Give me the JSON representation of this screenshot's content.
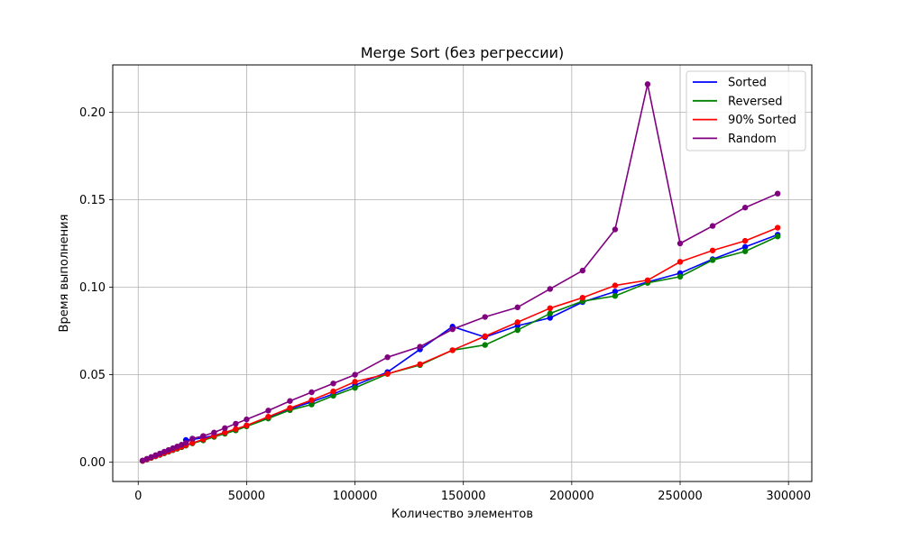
{
  "chart_data": {
    "type": "line",
    "title": "Merge Sort (без регрессии)",
    "xlabel": "Количество элементов",
    "ylabel": "Время выполнения",
    "xlim": [
      -11750,
      310750
    ],
    "ylim": [
      -0.011,
      0.227
    ],
    "xticks": [
      0,
      50000,
      100000,
      150000,
      200000,
      250000,
      300000
    ],
    "xtick_labels": [
      "0",
      "50000",
      "100000",
      "150000",
      "200000",
      "250000",
      "300000"
    ],
    "yticks": [
      0.0,
      0.05,
      0.1,
      0.15,
      0.2
    ],
    "ytick_labels": [
      "0.00",
      "0.05",
      "0.10",
      "0.15",
      "0.20"
    ],
    "grid": true,
    "legend_position": "top-right",
    "x": [
      2000,
      4000,
      6000,
      8000,
      10000,
      12000,
      14000,
      16000,
      18000,
      20000,
      22000,
      25000,
      30000,
      35000,
      40000,
      45000,
      50000,
      60000,
      70000,
      80000,
      90000,
      100000,
      115000,
      130000,
      145000,
      160000,
      175000,
      190000,
      205000,
      220000,
      235000,
      250000,
      265000,
      280000,
      295000
    ],
    "series": [
      {
        "name": "Sorted",
        "color": "#0000ff",
        "values": [
          0.0008,
          0.0016,
          0.0025,
          0.0034,
          0.0043,
          0.0052,
          0.0061,
          0.007,
          0.0079,
          0.0088,
          0.0127,
          0.013,
          0.014,
          0.0152,
          0.017,
          0.0186,
          0.021,
          0.0255,
          0.0305,
          0.0345,
          0.039,
          0.044,
          0.0515,
          0.0645,
          0.0775,
          0.0715,
          0.078,
          0.0825,
          0.0915,
          0.0975,
          0.103,
          0.108,
          0.116,
          0.123,
          0.13
        ]
      },
      {
        "name": "Reversed",
        "color": "#008000",
        "values": [
          0.0008,
          0.0016,
          0.0025,
          0.0034,
          0.0042,
          0.0051,
          0.006,
          0.0069,
          0.0077,
          0.0086,
          0.0095,
          0.0108,
          0.0125,
          0.0145,
          0.0163,
          0.0182,
          0.0205,
          0.025,
          0.0298,
          0.033,
          0.038,
          0.0425,
          0.0505,
          0.0555,
          0.064,
          0.067,
          0.0755,
          0.085,
          0.092,
          0.095,
          0.1025,
          0.106,
          0.1155,
          0.1205,
          0.129
        ]
      },
      {
        "name": "90% Sorted",
        "color": "#ff0000",
        "values": [
          0.0008,
          0.0017,
          0.0026,
          0.0035,
          0.0044,
          0.0053,
          0.0062,
          0.0071,
          0.008,
          0.0089,
          0.0098,
          0.011,
          0.013,
          0.015,
          0.017,
          0.019,
          0.021,
          0.026,
          0.031,
          0.0355,
          0.0405,
          0.046,
          0.0505,
          0.056,
          0.064,
          0.072,
          0.08,
          0.088,
          0.094,
          0.101,
          0.104,
          0.1145,
          0.121,
          0.1265,
          0.134
        ]
      },
      {
        "name": "Random",
        "color": "#800080",
        "values": [
          0.001,
          0.002,
          0.003,
          0.004,
          0.005,
          0.006,
          0.007,
          0.008,
          0.009,
          0.01,
          0.011,
          0.0135,
          0.015,
          0.017,
          0.0195,
          0.022,
          0.0245,
          0.0295,
          0.035,
          0.04,
          0.045,
          0.05,
          0.06,
          0.066,
          0.076,
          0.083,
          0.0885,
          0.099,
          0.1095,
          0.133,
          0.216,
          0.125,
          0.135,
          0.1455,
          0.1535
        ]
      }
    ]
  }
}
